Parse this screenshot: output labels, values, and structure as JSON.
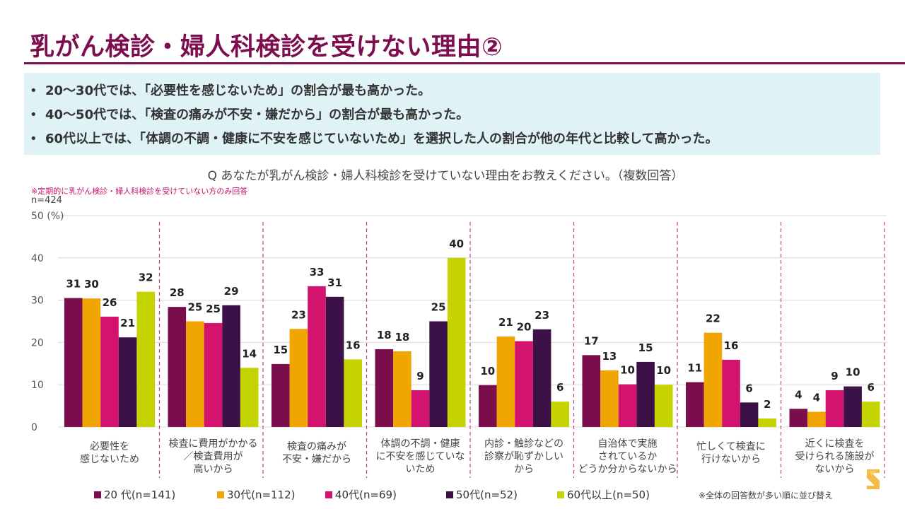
{
  "title": "乳がん検診・婦人科検診を受けない理由②",
  "summary": [
    "20～30代では、「必要性を感じないため」の割合が最も高かった。",
    "40～50代では、「検査の痛みが不安・嫌だから」の割合が最も高かった。",
    "60代以上では、「体調の不調・健康に不安を感じていないため」を選択した人の割合が他の年代と比較して高かった。"
  ],
  "bullet": "•",
  "question": "Q あなたが乳がん検診・婦人科検診を受けていない理由をお教えください。（複数回答）",
  "note": "※定期的に乳がん検診・婦人科検診を受けていない方のみ回答",
  "sample": "n=424",
  "footnote": "※全体の回答数が多い順に並び替え",
  "colors": {
    "title": "#7d0d4e",
    "accent": "#c8106b"
  },
  "chart_data": {
    "type": "bar",
    "ylim": [
      0,
      50
    ],
    "yticks": [
      "0",
      "10",
      "20",
      "30",
      "40",
      "50 (%)"
    ],
    "grid": true,
    "legend_position": "bottom",
    "categories": [
      [
        "必要性を",
        "感じないため"
      ],
      [
        "検査に費用がかかる",
        "／検査費用が",
        "高いから"
      ],
      [
        "検査の痛みが",
        "不安・嫌だから"
      ],
      [
        "体調の不調・健康",
        "に不安を感じていな",
        "いため"
      ],
      [
        "内診・触診などの",
        "診察が恥ずかしい",
        "から"
      ],
      [
        "自治体で実施",
        "されているか",
        "どうか分からないから"
      ],
      [
        "忙しくて検査に",
        "行けないから"
      ],
      [
        "近くに検査を",
        "受けられる施設が",
        "ないから"
      ]
    ],
    "series": [
      {
        "name": "20 代(n=141)",
        "color": "#7a0e4c",
        "values": [
          30.5,
          28.4,
          14.9,
          18.4,
          9.9,
          17.0,
          10.6,
          4.3
        ],
        "labels": [
          "31",
          "28",
          "15",
          "18",
          "10",
          "17",
          "11",
          "4"
        ]
      },
      {
        "name": "30代(n=112)",
        "color": "#f0a500",
        "values": [
          30.4,
          25.0,
          23.2,
          17.9,
          21.4,
          13.4,
          22.3,
          3.6
        ],
        "labels": [
          "30",
          "25",
          "23",
          "18",
          "21",
          "13",
          "22",
          "4"
        ]
      },
      {
        "name": "40代(n=69)",
        "color": "#d4136f",
        "values": [
          26.1,
          24.6,
          33.3,
          8.7,
          20.3,
          10.1,
          15.9,
          8.7
        ],
        "labels": [
          "26",
          "25",
          "33",
          "9",
          "20",
          "10",
          "16",
          "9"
        ]
      },
      {
        "name": "50代(n=52)",
        "color": "#3b1148",
        "values": [
          21.2,
          28.8,
          30.8,
          25.0,
          23.1,
          15.4,
          5.8,
          9.6
        ],
        "labels": [
          "21",
          "29",
          "31",
          "25",
          "23",
          "15",
          "6",
          "10"
        ]
      },
      {
        "name": "60代以上(n=50)",
        "color": "#c5d400",
        "values": [
          32.0,
          14.0,
          16.0,
          40.0,
          6.0,
          10.0,
          2.0,
          6.0
        ],
        "labels": [
          "32",
          "14",
          "16",
          "40",
          "6",
          "10",
          "2",
          "6"
        ]
      }
    ]
  }
}
